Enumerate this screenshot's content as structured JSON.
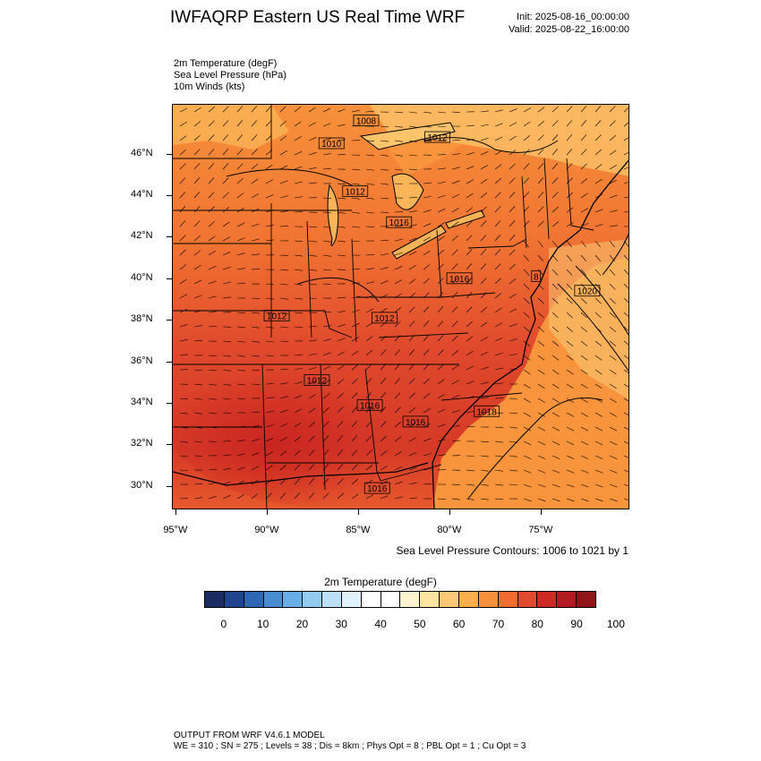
{
  "header": {
    "title": "IWFAQRP Eastern US Real Time WRF",
    "init": "Init: 2025-08-16_00:00:00",
    "valid": "Valid: 2025-08-22_16:00:00"
  },
  "fields": [
    "2m Temperature   (degF)",
    "Sea Level Pressure   (hPa)",
    "10m Winds   (kts)"
  ],
  "map": {
    "lat_labels": [
      "46°N",
      "44°N",
      "42°N",
      "40°N",
      "38°N",
      "36°N",
      "34°N",
      "32°N",
      "30°N"
    ],
    "lat_values": [
      46,
      44,
      42,
      40,
      38,
      36,
      34,
      32,
      30
    ],
    "lon_labels": [
      "95°W",
      "90°W",
      "85°W",
      "80°W",
      "75°W"
    ],
    "lon_values": [
      -95,
      -90,
      -85,
      -80,
      -75
    ],
    "slp_labels": [
      {
        "text": "1008",
        "lon": -84.6,
        "lat": 47.6
      },
      {
        "text": "1010",
        "lon": -86.5,
        "lat": 46.5
      },
      {
        "text": "1012",
        "lon": -85.2,
        "lat": 44.2
      },
      {
        "text": "1012",
        "lon": -80.7,
        "lat": 46.8
      },
      {
        "text": "1016",
        "lon": -82.8,
        "lat": 42.7
      },
      {
        "text": "1016",
        "lon": -79.5,
        "lat": 40.0
      },
      {
        "text": "1012",
        "lon": -89.5,
        "lat": 38.2
      },
      {
        "text": "1012",
        "lon": -83.6,
        "lat": 38.1
      },
      {
        "text": "1012",
        "lon": -87.3,
        "lat": 35.1
      },
      {
        "text": "1016",
        "lon": -84.4,
        "lat": 33.9
      },
      {
        "text": "1016",
        "lon": -81.9,
        "lat": 33.1
      },
      {
        "text": "1018",
        "lon": -78.0,
        "lat": 33.6
      },
      {
        "text": "1020",
        "lon": -72.5,
        "lat": 39.4
      },
      {
        "text": "1016",
        "lon": -84.0,
        "lat": 29.9
      },
      {
        "text": "8",
        "lon": -75.3,
        "lat": 40.1
      }
    ]
  },
  "contour_note": "Sea Level Pressure Contours: 1006 to 1021 by 1",
  "colorbar": {
    "title": "2m Temperature  (degF)",
    "colors": [
      "#1b2c63",
      "#20458f",
      "#2e66b2",
      "#4a8cd0",
      "#69aee4",
      "#93cbef",
      "#bbe0f7",
      "#e1f2fc",
      "#ffffff",
      "#ffffff",
      "#fff3d0",
      "#fee3a1",
      "#fdc875",
      "#fbae4f",
      "#f7903a",
      "#f16c30",
      "#e24a2d",
      "#cd2a26",
      "#b31b22",
      "#8f1518"
    ],
    "labels": [
      "0",
      "10",
      "20",
      "30",
      "40",
      "50",
      "60",
      "70",
      "80",
      "90",
      "100"
    ],
    "values": [
      0,
      10,
      20,
      30,
      40,
      50,
      60,
      70,
      80,
      90,
      100
    ]
  },
  "footer": {
    "line1": "OUTPUT FROM WRF V4.6.1 MODEL",
    "line2": "WE = 310 ; SN = 275 ; Levels = 38 ; Dis = 8km ; Phys Opt = 8 ; PBL Opt = 1 ; Cu Opt = 3"
  }
}
